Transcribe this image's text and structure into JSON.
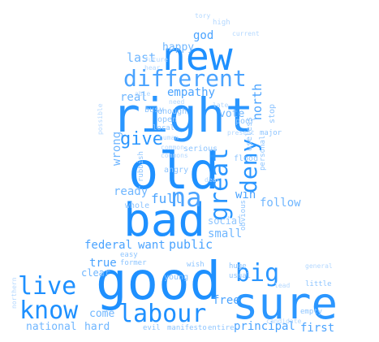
{
  "words": [
    "new",
    "right",
    "old",
    "bad",
    "good",
    "sure",
    "labour",
    "different",
    "great",
    "na",
    "deny",
    "live",
    "know",
    "big",
    "give",
    "last",
    "god",
    "happy",
    "empathy",
    "vote",
    "north",
    "real",
    "wrong",
    "win",
    "follow",
    "full",
    "ready",
    "federal",
    "want",
    "public",
    "small",
    "social",
    "true",
    "clear",
    "free",
    "come",
    "hard",
    "national",
    "principal",
    "first",
    "manifesto",
    "evil",
    "entire",
    "young",
    "angry",
    "serious",
    "whole",
    "easy",
    "former",
    "wish",
    "huge",
    "usual",
    "little",
    "empty",
    "candidate",
    "lead",
    "open",
    "enough",
    "local",
    "busy",
    "useless",
    "poor",
    "major",
    "current",
    "high",
    "future",
    "hear",
    "stop",
    "flood",
    "personal",
    "general",
    "human",
    "dear",
    "rubbish",
    "commons",
    "common",
    "obvious",
    "northern",
    "possible",
    "present",
    "need",
    "able",
    "late",
    "tory"
  ],
  "colors": {
    "primary": "#1e90ff",
    "light": "#8ec5ff",
    "background": "#ffffff"
  }
}
